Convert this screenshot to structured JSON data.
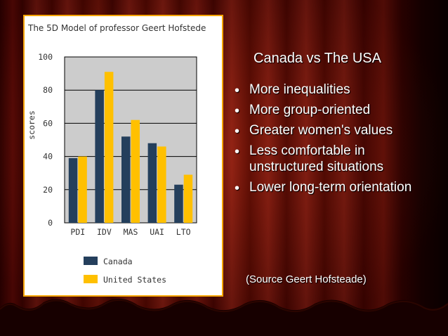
{
  "slide": {
    "heading": "Canada vs The USA",
    "bullets": [
      "More inequalities",
      "More group-oriented",
      "Greater women's values",
      "Less comfortable in unstructured situations",
      "Lower long-term orientation"
    ],
    "source_note": "(Source Geert Hofsteade)"
  },
  "colors": {
    "canada": "#243f5c",
    "united_states": "#ffc000",
    "plot_background": "#cccccc",
    "panel_border": "#f5a400"
  },
  "chart_data": {
    "type": "bar",
    "title": "The 5D Model of professor Geert Hofstede",
    "xlabel": "",
    "ylabel": "scores",
    "categories": [
      "PDI",
      "IDV",
      "MAS",
      "UAI",
      "LTO"
    ],
    "series": [
      {
        "name": "Canada",
        "values": [
          39,
          80,
          52,
          48,
          23
        ]
      },
      {
        "name": "United States",
        "values": [
          40,
          91,
          62,
          46,
          29
        ]
      }
    ],
    "ylim": [
      0,
      100
    ],
    "yticks": [
      0,
      20,
      40,
      60,
      80,
      100
    ],
    "grid": true,
    "legend_position": "bottom"
  }
}
